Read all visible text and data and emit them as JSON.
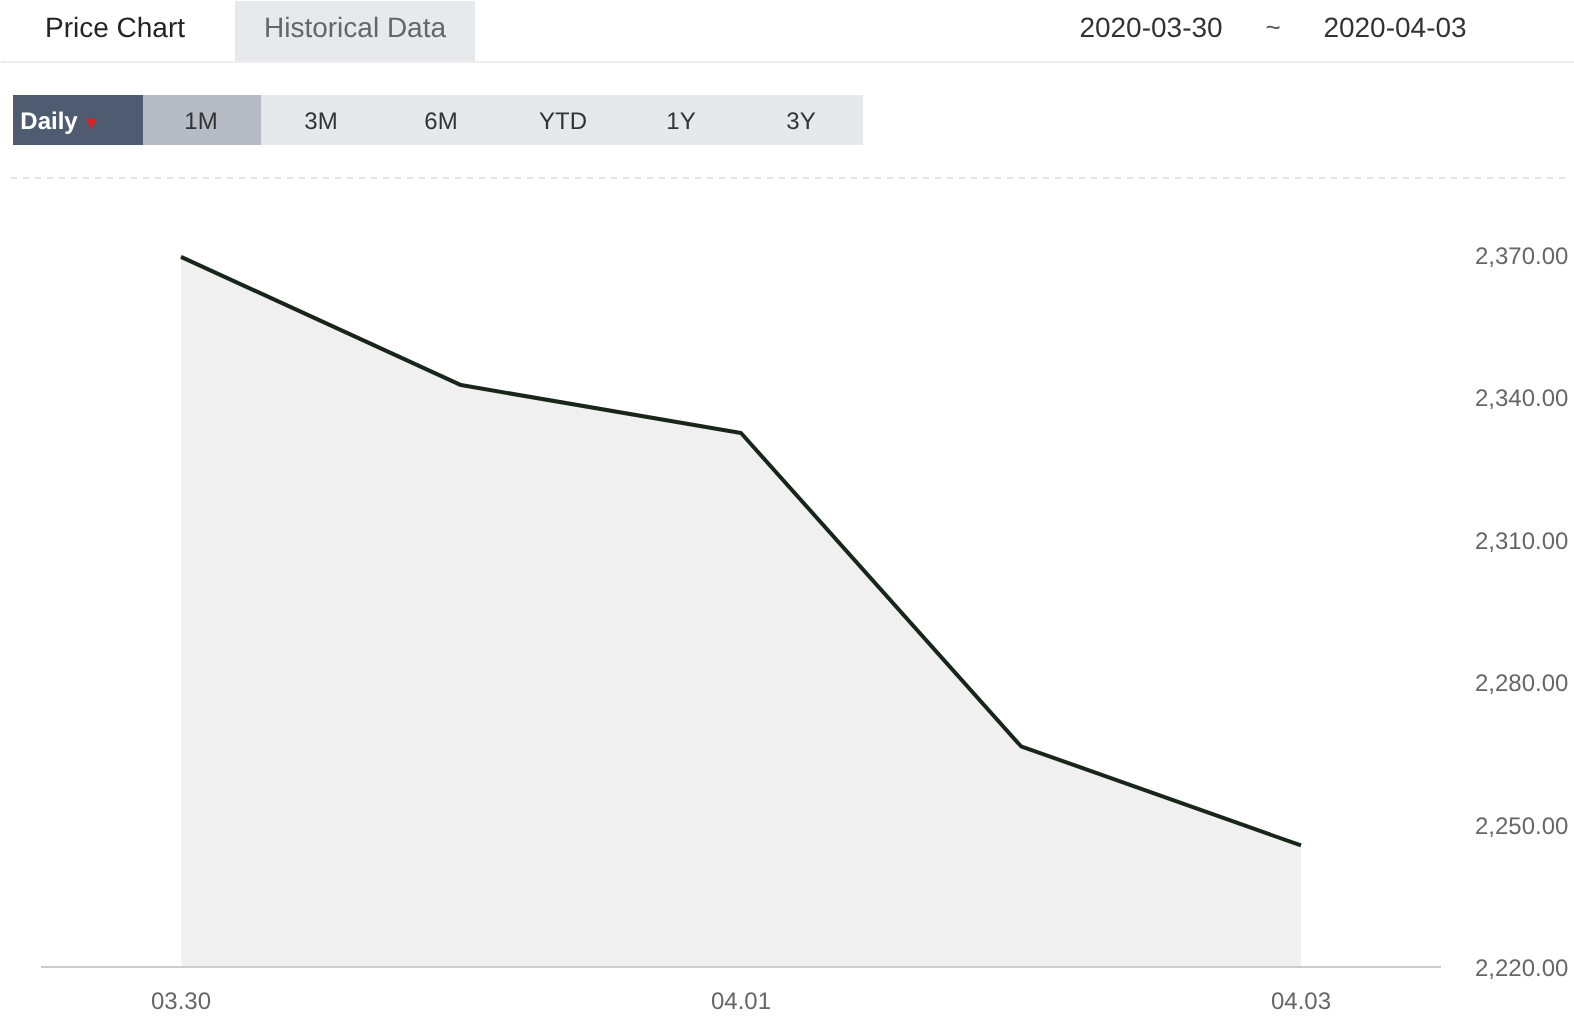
{
  "chart_data": {
    "type": "area",
    "annotations": [
      "Price Chart",
      "Historical Data",
      "2020-03-30",
      "~",
      "2020-04-03",
      "Daily",
      "▼",
      "1M",
      "3M",
      "6M",
      "YTD",
      "1Y",
      "3Y"
    ],
    "categories": [
      "03.30",
      null,
      "04.01",
      null,
      "04.03"
    ],
    "series": [
      {
        "color": "#18261a",
        "values": [
          2369.6,
          2342.6,
          2332.5,
          2266.5,
          2245.6
        ]
      }
    ],
    "ylim": [
      2220,
      2370
    ],
    "yticks": [
      {
        "value": 2220,
        "label": "2,220.00"
      },
      {
        "value": 2250,
        "label": "2,250.00"
      },
      {
        "value": 2280,
        "label": "2,280.00"
      },
      {
        "value": 2310,
        "label": "2,310.00"
      },
      {
        "value": 2340,
        "label": "2,340.00"
      },
      {
        "value": 2370,
        "label": "2,370.00"
      }
    ],
    "grid": false
  }
}
